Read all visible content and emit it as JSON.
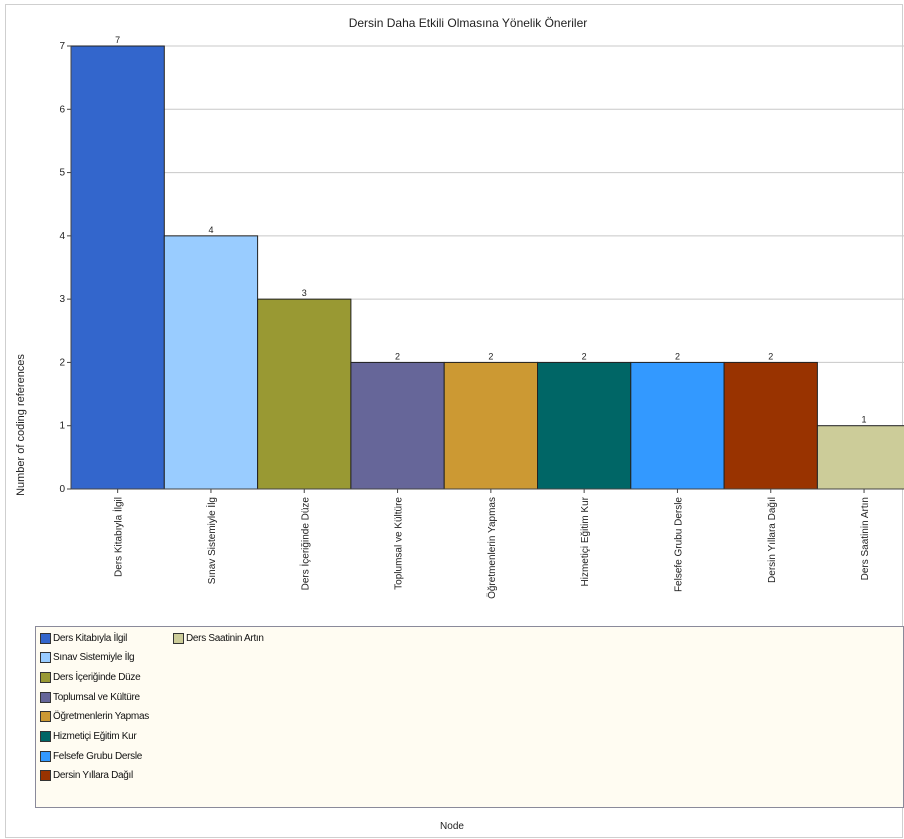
{
  "chart_data": {
    "type": "bar",
    "title": "Dersin Daha Etkili Olmasına Yönelik Öneriler",
    "xlabel": "Node",
    "ylabel": "Number of coding references",
    "ylim": [
      0,
      7
    ],
    "yticks": [
      0,
      1,
      2,
      3,
      4,
      5,
      6,
      7
    ],
    "grid": true,
    "legend_position": "bottom",
    "categories": [
      "Ders Kitabıyla İlgil",
      "Sınav Sistemiyle İlg",
      "Ders İçeriğinde Düze",
      "Toplumsal ve Kültüre",
      "Öğretmenlerin Yapmas",
      "Hizmetiçi Eğitim Kur",
      "Felsefe Grubu Dersle",
      "Dersin Yıllara Dağıl",
      "Ders Saatinin Artın"
    ],
    "values": [
      7,
      4,
      3,
      2,
      2,
      2,
      2,
      2,
      1
    ],
    "colors": [
      "#3366cc",
      "#99ccff",
      "#999933",
      "#666699",
      "#cc9933",
      "#006666",
      "#3399ff",
      "#993300",
      "#cccc99"
    ],
    "legend": [
      "Ders Kitabıyla İlgil",
      "Sınav Sistemiyle İlg",
      "Ders İçeriğinde Düze",
      "Toplumsal ve Kültüre",
      "Öğretmenlerin Yapmas",
      "Hizmetiçi Eğitim Kur",
      "Felsefe Grubu Dersle",
      "Dersin Yıllara Dağıl",
      "Ders Saatinin Artın"
    ]
  }
}
